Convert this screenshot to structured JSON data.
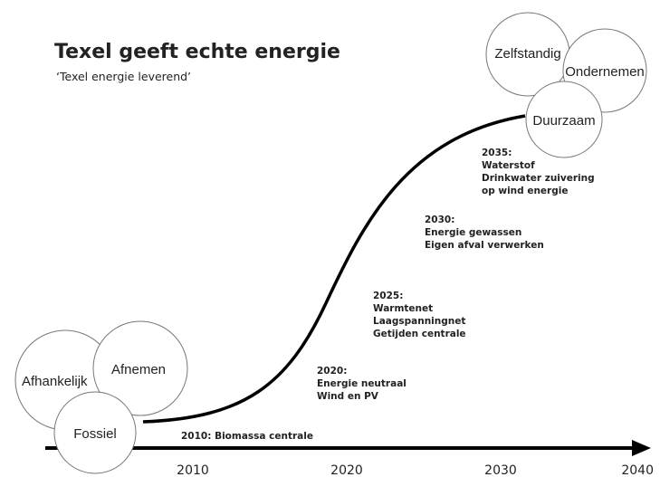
{
  "header": {
    "title": "Texel geeft echte energie",
    "subtitle": "‘Texel energie leverend’"
  },
  "bubbles": [
    {
      "label": "Afhankelijk"
    },
    {
      "label": "Afnemen"
    },
    {
      "label": "Fossiel"
    },
    {
      "label": "Zelfstandig"
    },
    {
      "label": "Ondernemen"
    },
    {
      "label": "Duurzaam"
    }
  ],
  "milestones": [
    {
      "lines": [
        "2010: Biomassa centrale"
      ]
    },
    {
      "lines": [
        "2020:",
        "Energie neutraal",
        "Wind en PV"
      ]
    },
    {
      "lines": [
        "2025:",
        "Warmtenet",
        "Laagspanningnet",
        "Getijden centrale"
      ]
    },
    {
      "lines": [
        "2030:",
        "Energie gewassen",
        "Eigen afval verwerken"
      ]
    },
    {
      "lines": [
        "2035:",
        "Waterstof",
        "Drinkwater zuivering",
        "op wind energie"
      ]
    }
  ],
  "axis": {
    "labels": [
      "2010",
      "2020",
      "2030",
      "2040"
    ]
  }
}
